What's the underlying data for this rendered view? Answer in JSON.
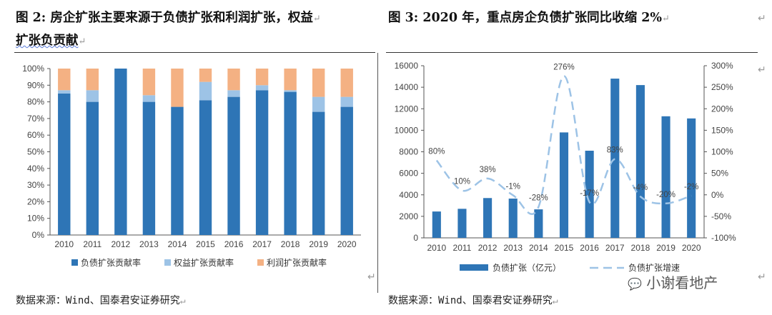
{
  "left_title": {
    "line1": "图 2: 房企扩张主要来源于负债扩张和利润扩张，权益",
    "line2": "扩张负贡献"
  },
  "right_title": "图 3: 2020 年，重点房企负债扩张同比收缩 2%",
  "paragraph_mark": "↵",
  "source_left": "数据来源：Wind、国泰君安证券研究",
  "source_right": "数据来源：Wind、国泰君安证券研究",
  "watermark": "小谢看地产",
  "colors": {
    "debt": "#2E75B6",
    "equity": "#9DC3E6",
    "profit": "#F4B183",
    "dash_line": "#9DC3E6",
    "axis": "#555555"
  },
  "chart_data": [
    {
      "type": "bar",
      "stacked": true,
      "categories": [
        "2010",
        "2011",
        "2012",
        "2013",
        "2014",
        "2015",
        "2016",
        "2017",
        "2018",
        "2019",
        "2020"
      ],
      "series": [
        {
          "name": "负债扩张贡献率",
          "values": [
            85,
            80,
            100,
            80,
            77,
            81,
            83,
            87,
            86,
            74,
            77
          ]
        },
        {
          "name": "权益扩张贡献率",
          "values": [
            2,
            7,
            0,
            4,
            0,
            11,
            4,
            3,
            1,
            9,
            6
          ]
        },
        {
          "name": "利润扩张贡献率",
          "values": [
            13,
            13,
            0,
            16,
            23,
            8,
            13,
            10,
            13,
            17,
            17
          ]
        }
      ],
      "ylim": [
        0,
        100
      ],
      "yticks": [
        "0%",
        "10%",
        "20%",
        "30%",
        "40%",
        "50%",
        "60%",
        "70%",
        "80%",
        "90%",
        "100%"
      ],
      "legend": "bottom",
      "grid": false
    },
    {
      "type": "bar",
      "categories": [
        "2010",
        "2011",
        "2012",
        "2013",
        "2014",
        "2015",
        "2016",
        "2017",
        "2018",
        "2019",
        "2020"
      ],
      "series": [
        {
          "name": "负债扩张（亿元）",
          "type": "bar",
          "axis": "left",
          "values": [
            2450,
            2700,
            3700,
            3650,
            2650,
            9800,
            8100,
            14800,
            14200,
            11300,
            11100
          ]
        },
        {
          "name": "负债扩张增速",
          "type": "line",
          "style": "dashed",
          "axis": "right",
          "values": [
            80,
            10,
            38,
            -1,
            -28,
            276,
            -17,
            83,
            -4,
            -20,
            -2
          ],
          "labels": [
            "80%",
            "10%",
            "38%",
            "-1%",
            "-28%",
            "276%",
            "-17%",
            "83%",
            "-4%",
            "-20%",
            "-2%"
          ]
        }
      ],
      "ylim": [
        0,
        16000
      ],
      "yticks": [
        "0",
        "2000",
        "4000",
        "6000",
        "8000",
        "10000",
        "12000",
        "14000",
        "16000"
      ],
      "y2lim": [
        -100,
        300
      ],
      "y2ticks": [
        "-100%",
        "-50%",
        "0%",
        "50%",
        "100%",
        "150%",
        "200%",
        "250%",
        "300%"
      ],
      "legend": "bottom",
      "grid": false
    }
  ]
}
